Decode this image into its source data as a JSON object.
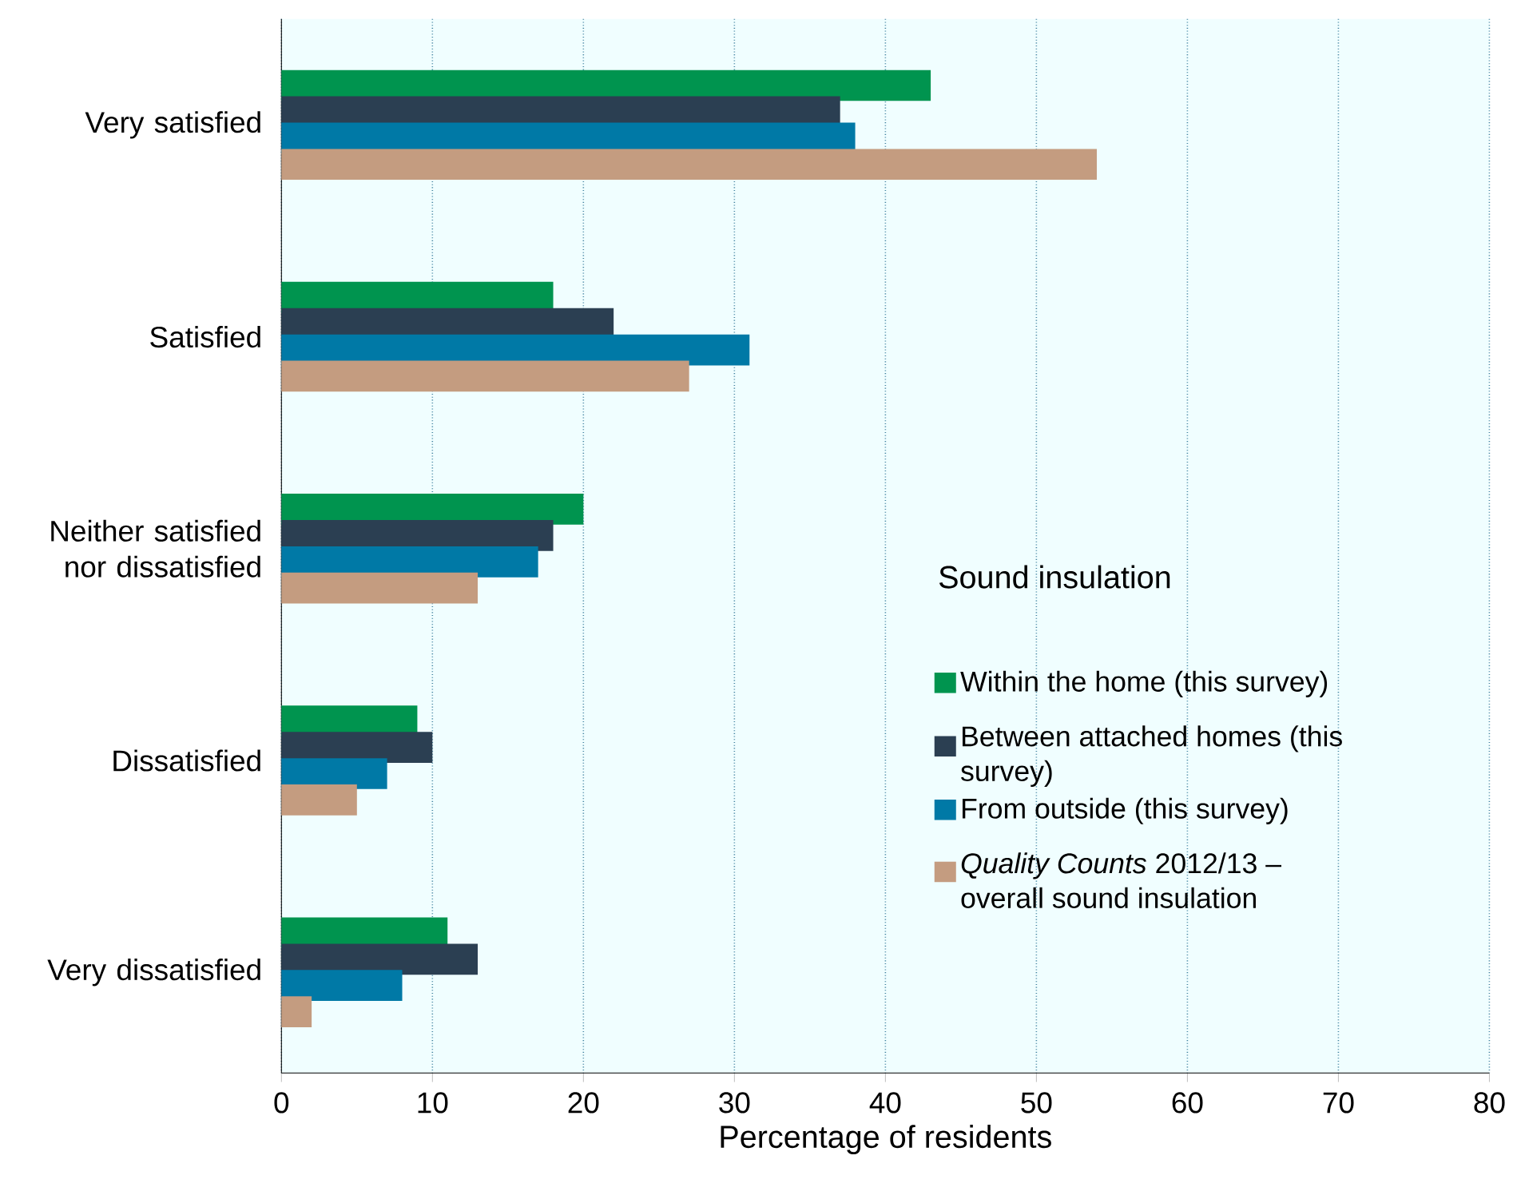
{
  "chart_data": {
    "type": "bar",
    "orientation": "horizontal",
    "xlabel": "Percentage of residents",
    "legend_title": "Sound insulation",
    "categories": [
      "Very satisfied",
      "Satisfied",
      "Neither satisfied nor dissatisfied",
      "Dissatisfied",
      "Very dissatisfied"
    ],
    "series": [
      {
        "name": "Within the home (this survey)",
        "color": "#00944f",
        "values": [
          43,
          18,
          20,
          9,
          11
        ]
      },
      {
        "name": "Between attached homes (this survey)",
        "color": "#2b3f52",
        "values": [
          37,
          22,
          18,
          10,
          13
        ]
      },
      {
        "name": "From outside (this survey)",
        "color": "#0079a6",
        "values": [
          38,
          31,
          17,
          7,
          8
        ]
      },
      {
        "name": "*Quality Counts* 2012/13 – overall sound insulation",
        "color": "#c49c80",
        "values": [
          54,
          27,
          13,
          5,
          2
        ]
      }
    ],
    "xlim": [
      0,
      80
    ],
    "xticks": [
      0,
      10,
      20,
      30,
      40,
      50,
      60,
      70,
      80
    ],
    "grid": "x",
    "legend": "right"
  }
}
